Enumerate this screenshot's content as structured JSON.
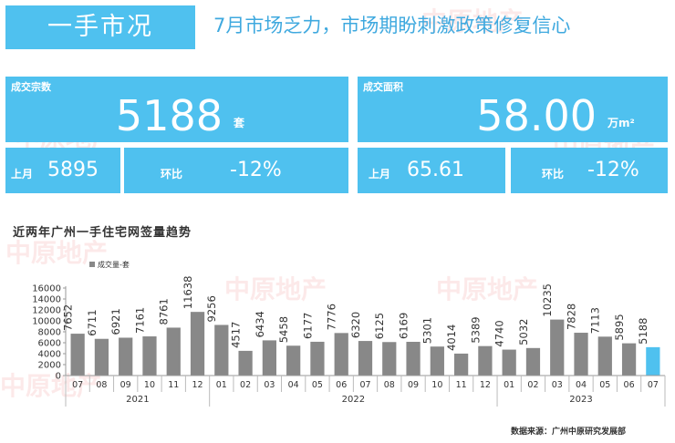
{
  "header": {
    "title": "一手市况",
    "headline": "7月市场乏力，市场期盼刺激政策修复信心"
  },
  "volume": {
    "label": "成交宗数",
    "value": "5188",
    "unit": "套",
    "prev_label": "上月",
    "prev_value": "5895",
    "mom_label": "环比",
    "mom_value": "-12%"
  },
  "area": {
    "label": "成交面积",
    "value": "58.00",
    "unit": "万m²",
    "prev_label": "上月",
    "prev_value": "65.61",
    "mom_label": "环比",
    "mom_value": "-12%"
  },
  "watermark": "中原地产",
  "colors": {
    "panel": "#4fc1ef",
    "bar": "#888888",
    "bar_highlight": "#4fc1ef",
    "headline": "#3fa9df"
  },
  "chart_data": {
    "type": "bar",
    "title": "近两年广州一手住宅网签量趋势",
    "legend": "成交量-套",
    "legend_position": "top-left",
    "categories": [
      "07",
      "08",
      "09",
      "10",
      "11",
      "12",
      "01",
      "02",
      "03",
      "04",
      "05",
      "06",
      "07",
      "08",
      "09",
      "10",
      "11",
      "12",
      "01",
      "02",
      "03",
      "04",
      "05",
      "06",
      "07"
    ],
    "years": [
      {
        "label": "2021",
        "start": 0,
        "count": 6
      },
      {
        "label": "2022",
        "start": 6,
        "count": 12
      },
      {
        "label": "2023",
        "start": 18,
        "count": 7
      }
    ],
    "values": [
      7652,
      6711,
      6921,
      7161,
      8761,
      11638,
      9256,
      4517,
      6434,
      5458,
      6177,
      7776,
      6320,
      6125,
      6169,
      5301,
      4014,
      5389,
      4740,
      5032,
      10235,
      7828,
      7113,
      5895,
      5188
    ],
    "highlight_index": 24,
    "ylim": [
      0,
      16000
    ],
    "yticks": [
      0,
      2000,
      4000,
      6000,
      8000,
      10000,
      12000,
      14000,
      16000
    ],
    "grid": false
  },
  "source": "数据来源：广州中原研究发展部"
}
